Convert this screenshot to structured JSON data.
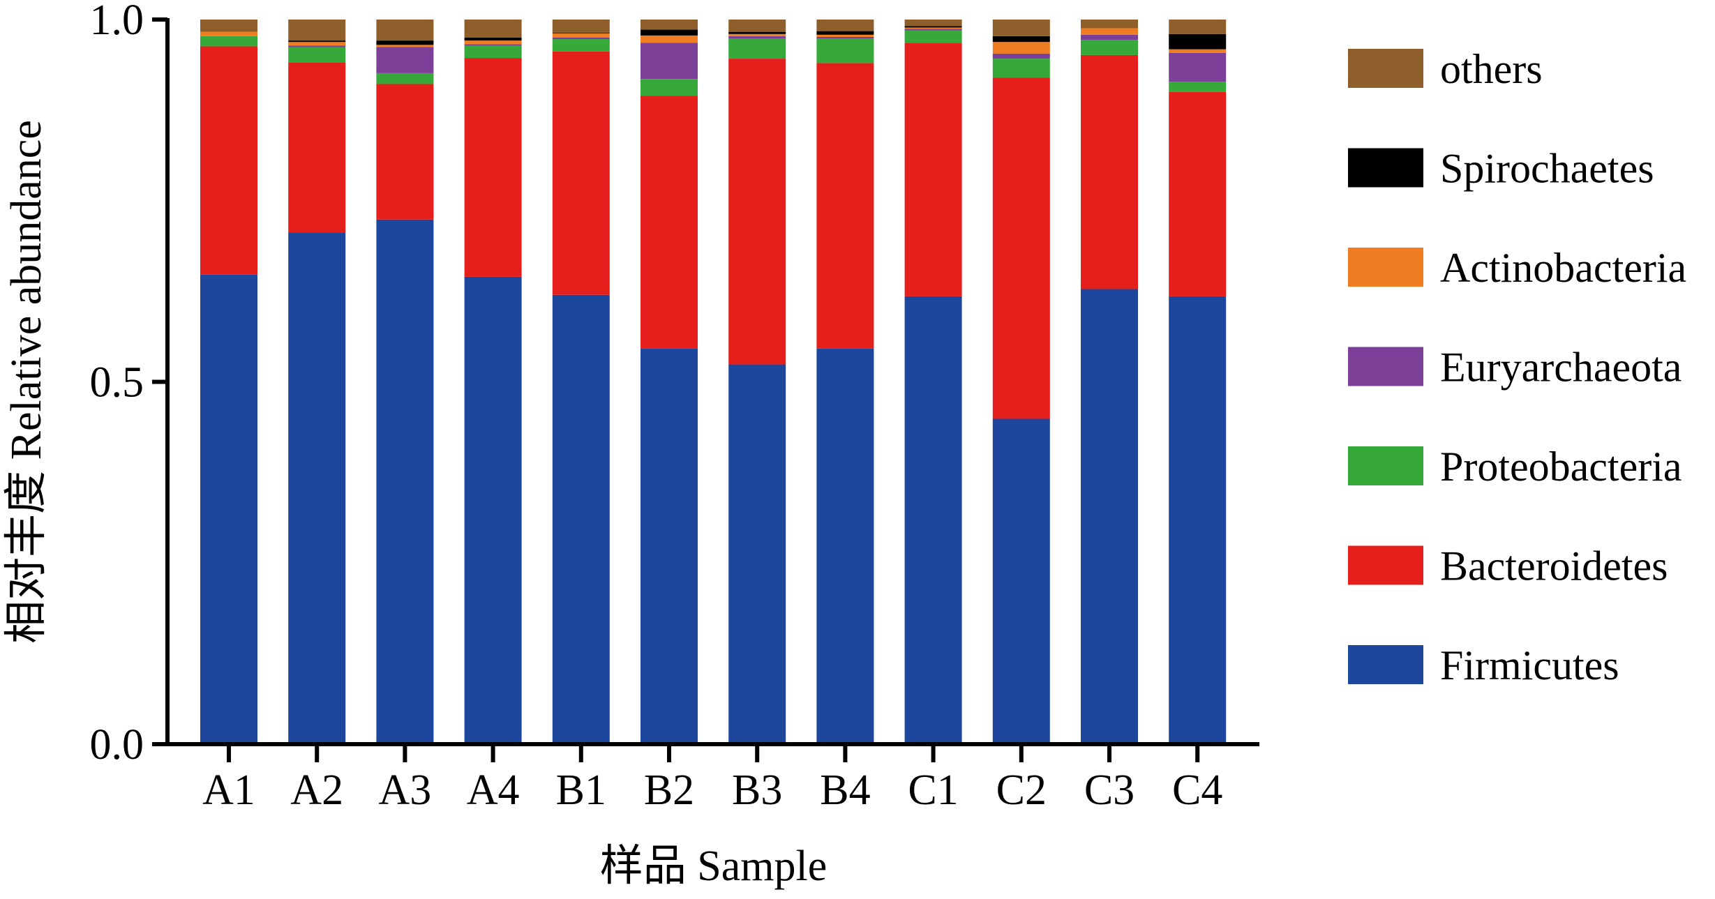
{
  "chart_data": {
    "type": "bar",
    "stacked": true,
    "xlabel": "样品  Sample",
    "ylabel": "相对丰度  Relative abundance",
    "ylim": [
      0,
      1.0
    ],
    "yticks": [
      "0.0",
      "0.5",
      "1.0"
    ],
    "ytick_values": [
      0,
      0.5,
      1.0
    ],
    "grid": false,
    "legend_position": "right",
    "categories": [
      "A1",
      "A2",
      "A3",
      "A4",
      "B1",
      "B2",
      "B3",
      "B4",
      "C1",
      "C2",
      "C3",
      "C4"
    ],
    "series": [
      {
        "name": "Firmicutes",
        "color": "#1c479c",
        "values": [
          0.648,
          0.706,
          0.724,
          0.645,
          0.62,
          0.546,
          0.524,
          0.546,
          0.618,
          0.449,
          0.628,
          0.618
        ]
      },
      {
        "name": "Bacteroidetes",
        "color": "#e41f1c",
        "values": [
          0.315,
          0.235,
          0.187,
          0.302,
          0.336,
          0.349,
          0.422,
          0.394,
          0.35,
          0.471,
          0.323,
          0.282
        ]
      },
      {
        "name": "Proteobacteria",
        "color": "#36a93a",
        "values": [
          0.014,
          0.021,
          0.015,
          0.017,
          0.017,
          0.023,
          0.028,
          0.034,
          0.017,
          0.026,
          0.021,
          0.014
        ]
      },
      {
        "name": "Euryarchaeota",
        "color": "#7c3f97",
        "values": [
          0.0,
          0.002,
          0.036,
          0.002,
          0.002,
          0.05,
          0.003,
          0.002,
          0.002,
          0.007,
          0.007,
          0.04
        ]
      },
      {
        "name": "Actinobacteria",
        "color": "#ef7d22",
        "values": [
          0.006,
          0.005,
          0.003,
          0.005,
          0.006,
          0.01,
          0.003,
          0.003,
          0.002,
          0.016,
          0.009,
          0.005
        ]
      },
      {
        "name": "Spirochaetes",
        "color": "#000000",
        "values": [
          0.0,
          0.002,
          0.006,
          0.004,
          0.001,
          0.008,
          0.003,
          0.005,
          0.002,
          0.008,
          0.0,
          0.021
        ]
      },
      {
        "name": "others",
        "color": "#8e5e2b",
        "values": [
          0.017,
          0.029,
          0.029,
          0.025,
          0.018,
          0.014,
          0.017,
          0.016,
          0.009,
          0.023,
          0.012,
          0.02
        ]
      }
    ],
    "legend_order": [
      "others",
      "Spirochaetes",
      "Actinobacteria",
      "Euryarchaeota",
      "Proteobacteria",
      "Bacteroidetes",
      "Firmicutes"
    ]
  }
}
